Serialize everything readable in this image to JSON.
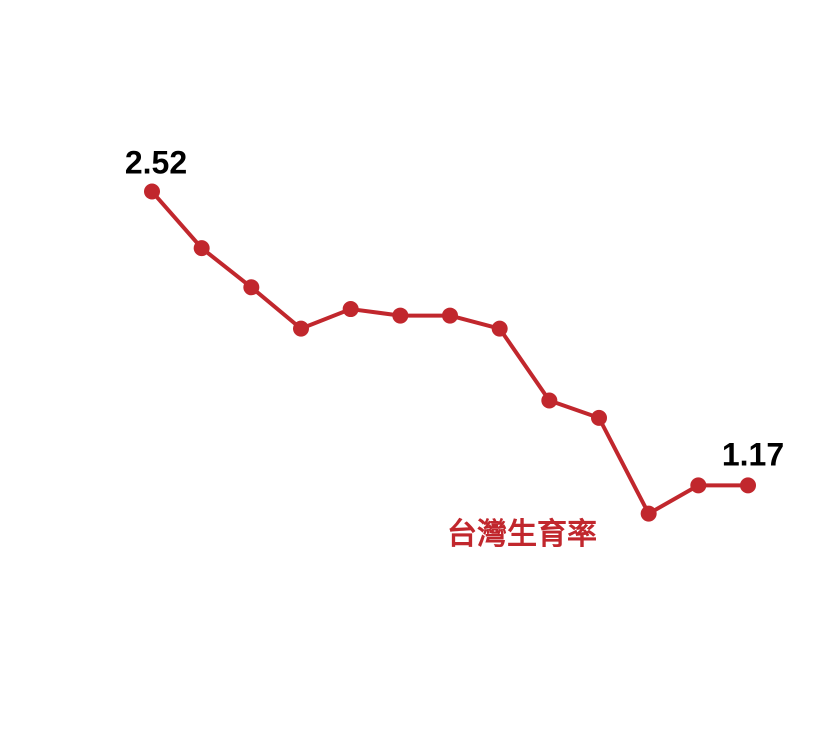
{
  "chart_data": {
    "type": "line",
    "x": [
      1,
      2,
      3,
      4,
      5,
      6,
      7,
      8,
      9,
      10,
      11,
      12,
      13
    ],
    "series": [
      {
        "name": "台灣生育率",
        "color": "#c1272d",
        "values": [
          2.52,
          2.26,
          2.08,
          1.89,
          1.98,
          1.95,
          1.95,
          1.89,
          1.56,
          1.48,
          1.04,
          1.17,
          1.17
        ]
      }
    ],
    "annotations": {
      "first_value": "2.52",
      "last_value": "1.17"
    },
    "ylim": [
      0.0,
      3.4
    ],
    "grid": false,
    "title": "",
    "xlabel": "",
    "ylabel": ""
  }
}
